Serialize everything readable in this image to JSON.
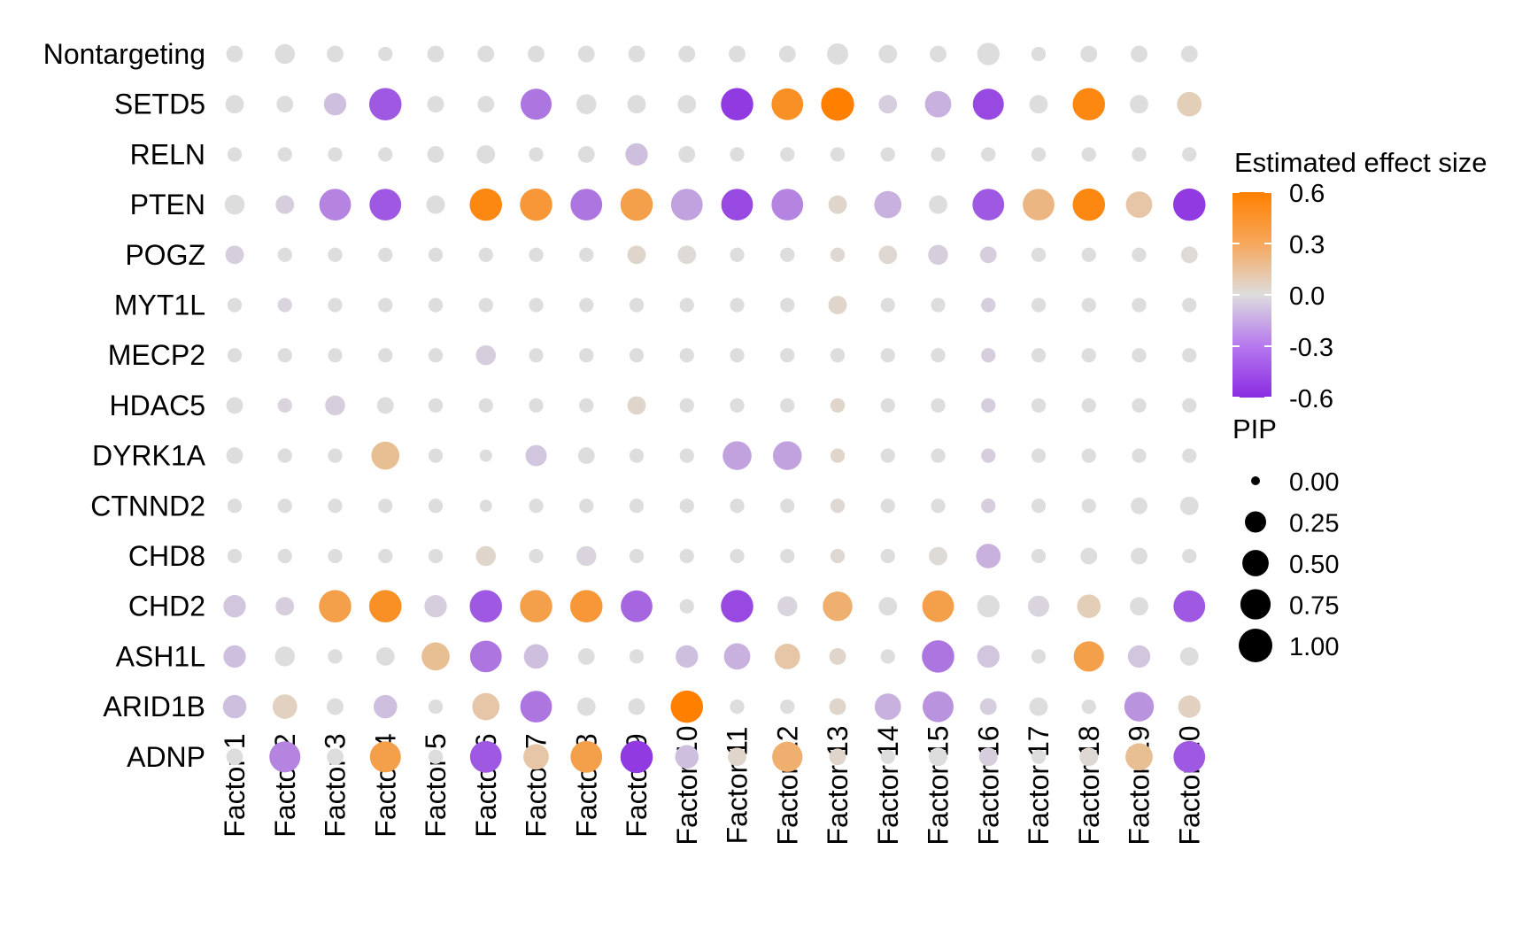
{
  "chart_data": {
    "type": "dotplot",
    "xlabel": "",
    "ylabel": "",
    "columns": [
      "Factor 1",
      "Factor 2",
      "Factor 3",
      "Factor 4",
      "Factor 5",
      "Factor 6",
      "Factor 7",
      "Factor 8",
      "Factor 9",
      "Factor 10",
      "Factor 11",
      "Factor 12",
      "Factor 13",
      "Factor 14",
      "Factor 15",
      "Factor 16",
      "Factor 17",
      "Factor 18",
      "Factor 19",
      "Factor 20"
    ],
    "rows": [
      "Nontargeting",
      "SETD5",
      "RELN",
      "PTEN",
      "POGZ",
      "MYT1L",
      "MECP2",
      "HDAC5",
      "DYRK1A",
      "CTNND2",
      "CHD8",
      "CHD2",
      "ASH1L",
      "ARID1B",
      "ADNP"
    ],
    "effect": [
      [
        0,
        0,
        0,
        0,
        0,
        0,
        0,
        0,
        0,
        0,
        0,
        0,
        0,
        0,
        0,
        0,
        0,
        0,
        0,
        0
      ],
      [
        0,
        0,
        -0.1,
        -0.45,
        0,
        0,
        -0.35,
        0,
        0,
        0,
        -0.55,
        0.5,
        0.6,
        -0.05,
        -0.15,
        -0.5,
        0,
        0.55,
        0,
        0.1
      ],
      [
        0,
        0,
        0,
        0,
        0,
        0,
        0,
        0,
        -0.1,
        0,
        0,
        0,
        0,
        0,
        0,
        0,
        0,
        0,
        0,
        0
      ],
      [
        0,
        -0.05,
        -0.3,
        -0.45,
        0,
        0.55,
        0.45,
        -0.35,
        0.4,
        -0.2,
        -0.5,
        -0.3,
        0.05,
        -0.15,
        0,
        -0.45,
        0.25,
        0.55,
        0.15,
        -0.55
      ],
      [
        -0.05,
        0,
        0,
        0,
        0,
        0,
        0,
        0,
        0.05,
        0.02,
        0,
        0,
        0.03,
        0.03,
        -0.05,
        -0.05,
        0,
        0,
        0,
        0.02
      ],
      [
        0,
        -0.03,
        0,
        0,
        0,
        0,
        0,
        0,
        0,
        0,
        0,
        0,
        0.05,
        0,
        0,
        -0.05,
        0,
        0,
        0,
        0
      ],
      [
        0,
        0,
        0,
        0,
        0,
        -0.05,
        0,
        0,
        0,
        0,
        0,
        0,
        0,
        0,
        0,
        -0.05,
        0,
        0,
        0,
        0
      ],
      [
        0,
        -0.03,
        -0.05,
        0,
        0,
        0,
        0,
        0,
        0.05,
        0,
        0,
        0,
        0.05,
        0,
        0,
        -0.05,
        0,
        0,
        0,
        0
      ],
      [
        0,
        0,
        0,
        0.2,
        0,
        0,
        -0.08,
        0,
        0,
        0,
        -0.2,
        -0.2,
        0.05,
        0,
        0,
        -0.05,
        0,
        0,
        0,
        0
      ],
      [
        0,
        0,
        0,
        0,
        0,
        0,
        0,
        0,
        0,
        0,
        0,
        0,
        0.03,
        0,
        0,
        -0.05,
        0,
        0,
        0,
        0
      ],
      [
        0,
        0,
        0,
        0,
        0,
        0.05,
        0,
        -0.03,
        0,
        0,
        0,
        0,
        0.03,
        0,
        0.02,
        -0.15,
        0,
        0,
        0,
        0
      ],
      [
        -0.08,
        -0.05,
        0.4,
        0.5,
        -0.05,
        -0.45,
        0.4,
        0.45,
        -0.4,
        0,
        -0.5,
        -0.03,
        0.3,
        0,
        0.4,
        0,
        -0.03,
        0.1,
        0,
        -0.45
      ],
      [
        -0.1,
        0,
        0,
        0,
        0.2,
        -0.35,
        -0.1,
        0,
        0,
        -0.1,
        -0.15,
        0.15,
        0.05,
        0,
        -0.35,
        -0.08,
        0,
        0.4,
        -0.08,
        0
      ],
      [
        -0.1,
        0.08,
        0,
        -0.1,
        0,
        0.15,
        -0.35,
        0,
        0,
        0.6,
        0,
        0,
        0.05,
        -0.15,
        -0.25,
        -0.05,
        0,
        0,
        -0.25,
        0.08
      ],
      [
        0,
        -0.3,
        0,
        0.4,
        0,
        -0.45,
        0.15,
        0.4,
        -0.55,
        -0.1,
        0.05,
        0.3,
        0.05,
        0,
        0,
        -0.05,
        0,
        0.03,
        0.2,
        -0.45
      ]
    ],
    "pip": [
      [
        0.1,
        0.2,
        0.1,
        0.05,
        0.1,
        0.1,
        0.1,
        0.1,
        0.1,
        0.1,
        0.1,
        0.1,
        0.25,
        0.15,
        0.1,
        0.3,
        0.05,
        0.1,
        0.1,
        0.1
      ],
      [
        0.15,
        0.1,
        0.3,
        0.9,
        0.1,
        0.1,
        0.8,
        0.2,
        0.15,
        0.15,
        0.9,
        0.85,
        0.95,
        0.15,
        0.5,
        0.8,
        0.15,
        0.9,
        0.15,
        0.4
      ],
      [
        0.05,
        0.05,
        0.05,
        0.05,
        0.1,
        0.15,
        0.05,
        0.1,
        0.3,
        0.1,
        0.05,
        0.05,
        0.05,
        0.05,
        0.05,
        0.05,
        0.05,
        0.05,
        0.05,
        0.05
      ],
      [
        0.2,
        0.15,
        0.85,
        0.85,
        0.15,
        0.9,
        0.9,
        0.85,
        0.9,
        0.85,
        0.85,
        0.85,
        0.15,
        0.55,
        0.15,
        0.85,
        0.85,
        0.9,
        0.5,
        0.9
      ],
      [
        0.15,
        0.05,
        0.05,
        0.05,
        0.05,
        0.05,
        0.05,
        0.05,
        0.15,
        0.15,
        0.05,
        0.05,
        0.05,
        0.15,
        0.2,
        0.1,
        0.05,
        0.05,
        0.05,
        0.1
      ],
      [
        0.05,
        0.05,
        0.05,
        0.05,
        0.05,
        0.05,
        0.05,
        0.05,
        0.05,
        0.05,
        0.05,
        0.05,
        0.15,
        0.05,
        0.05,
        0.05,
        0.05,
        0.05,
        0.05,
        0.05
      ],
      [
        0.05,
        0.05,
        0.05,
        0.05,
        0.05,
        0.2,
        0.05,
        0.05,
        0.05,
        0.05,
        0.05,
        0.05,
        0.05,
        0.05,
        0.05,
        0.05,
        0.05,
        0.05,
        0.05,
        0.05
      ],
      [
        0.1,
        0.05,
        0.2,
        0.1,
        0.05,
        0.05,
        0.05,
        0.05,
        0.15,
        0.05,
        0.05,
        0.05,
        0.05,
        0.05,
        0.05,
        0.05,
        0.05,
        0.05,
        0.05,
        0.05
      ],
      [
        0.1,
        0.05,
        0.05,
        0.6,
        0.05,
        0.02,
        0.25,
        0.1,
        0.05,
        0.05,
        0.65,
        0.65,
        0.05,
        0.05,
        0.05,
        0.05,
        0.05,
        0.05,
        0.05,
        0.05
      ],
      [
        0.05,
        0.05,
        0.05,
        0.05,
        0.05,
        0.02,
        0.05,
        0.05,
        0.05,
        0.05,
        0.05,
        0.05,
        0.05,
        0.05,
        0.05,
        0.05,
        0.05,
        0.05,
        0.1,
        0.15
      ],
      [
        0.05,
        0.05,
        0.05,
        0.05,
        0.05,
        0.2,
        0.05,
        0.2,
        0.05,
        0.05,
        0.05,
        0.05,
        0.05,
        0.05,
        0.15,
        0.4,
        0.05,
        0.1,
        0.1,
        0.05
      ],
      [
        0.3,
        0.15,
        0.9,
        0.9,
        0.3,
        0.9,
        0.9,
        0.9,
        0.85,
        0.05,
        0.9,
        0.2,
        0.7,
        0.15,
        0.85,
        0.3,
        0.25,
        0.35,
        0.15,
        0.85
      ],
      [
        0.3,
        0.2,
        0.05,
        0.15,
        0.6,
        0.85,
        0.4,
        0.1,
        0.05,
        0.3,
        0.5,
        0.45,
        0.1,
        0.05,
        0.9,
        0.3,
        0.05,
        0.75,
        0.3,
        0.15
      ],
      [
        0.35,
        0.4,
        0.1,
        0.35,
        0.05,
        0.55,
        0.85,
        0.15,
        0.1,
        0.9,
        0.05,
        0.05,
        0.1,
        0.5,
        0.8,
        0.1,
        0.15,
        0.05,
        0.7,
        0.3
      ],
      [
        0.1,
        0.8,
        0.1,
        0.8,
        0.05,
        0.85,
        0.45,
        0.85,
        0.9,
        0.35,
        0.15,
        0.75,
        0.1,
        0.05,
        0.15,
        0.15,
        0.05,
        0.15,
        0.55,
        0.85
      ]
    ],
    "color_legend": {
      "title": "Estimated effect size",
      "ticks": [
        "0.6",
        "0.3",
        "0.0",
        "-0.3",
        "-0.6"
      ],
      "tick_values": [
        0.6,
        0.3,
        0.0,
        -0.3,
        -0.6
      ],
      "range": [
        -0.6,
        0.6
      ],
      "low_color": "#8A2BE2",
      "mid_color": "#DDDDDD",
      "high_color": "#FF8000"
    },
    "size_legend": {
      "title": "PIP",
      "entries": [
        "0.00",
        "0.25",
        "0.50",
        "0.75",
        "1.00"
      ],
      "entry_values": [
        0,
        0.25,
        0.5,
        0.75,
        1.0
      ]
    }
  }
}
